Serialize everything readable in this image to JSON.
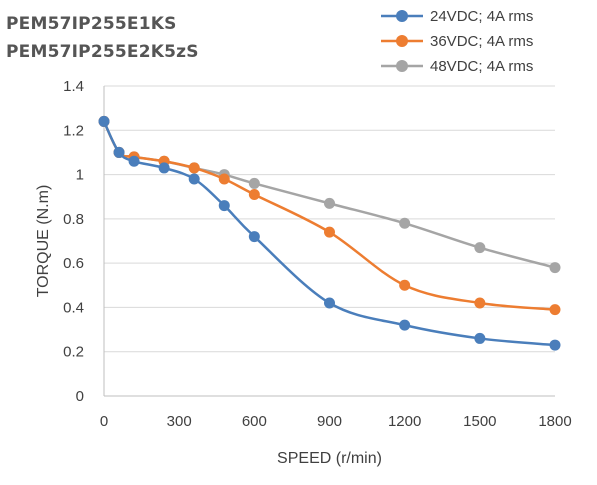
{
  "chart_data": {
    "type": "line",
    "title_lines": [
      "PEM57IP255E1KS",
      "PEM57IP255E2K5zS"
    ],
    "xlabel": "SPEED (r/min)",
    "ylabel": "TORQUE (N.m)",
    "xlim": [
      0,
      1800
    ],
    "ylim": [
      0,
      1.4
    ],
    "x_ticks": [
      0,
      300,
      600,
      900,
      1200,
      1500,
      1800
    ],
    "y_ticks": [
      0,
      0.2,
      0.4,
      0.6,
      0.8,
      1,
      1.2,
      1.4
    ],
    "y_tick_labels": [
      "0",
      "0.2",
      "0.4",
      "0.6",
      "0.8",
      "1",
      "1.2",
      "1.4"
    ],
    "grid": "horizontal",
    "legend_position": "top-right",
    "series": [
      {
        "name": "24VDC; 4A rms",
        "color": "#4a7ebb",
        "x": [
          0,
          60,
          120,
          240,
          360,
          480,
          600,
          900,
          1200,
          1500,
          1800
        ],
        "y": [
          1.24,
          1.1,
          1.06,
          1.03,
          0.98,
          0.86,
          0.72,
          0.42,
          0.32,
          0.26,
          0.23
        ]
      },
      {
        "name": "36VDC; 4A rms",
        "color": "#ed7d31",
        "x": [
          0,
          60,
          120,
          240,
          360,
          480,
          600,
          900,
          1200,
          1500,
          1800
        ],
        "y": [
          1.24,
          1.1,
          1.08,
          1.06,
          1.03,
          0.98,
          0.91,
          0.74,
          0.5,
          0.42,
          0.39
        ]
      },
      {
        "name": "48VDC; 4A rms",
        "color": "#a5a5a5",
        "x": [
          0,
          60,
          120,
          240,
          360,
          480,
          600,
          900,
          1200,
          1500,
          1800
        ],
        "y": [
          1.24,
          1.1,
          1.08,
          1.06,
          1.03,
          1.0,
          0.96,
          0.87,
          0.78,
          0.67,
          0.58
        ]
      }
    ]
  }
}
